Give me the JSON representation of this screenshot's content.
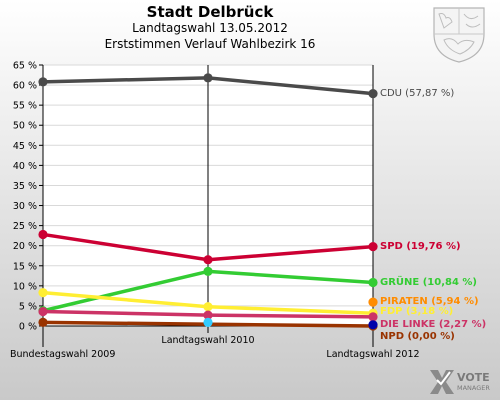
{
  "header": {
    "title": "Stadt Delbrück",
    "subtitle": "Landtagswahl 13.05.2012",
    "subtitle2": "Erststimmen Verlauf Wahlbezirk 16"
  },
  "logo": {
    "line1": "VOTE",
    "line2": "MANAGER"
  },
  "chart_data": {
    "type": "line",
    "title": "Stadt Delbrück",
    "x": [
      "Bundestagswahl 2009",
      "Landtagswahl 2010",
      "Landtagswahl 2012"
    ],
    "ylim": [
      0,
      65
    ],
    "yticks": [
      0,
      5,
      10,
      15,
      20,
      25,
      30,
      35,
      40,
      45,
      50,
      55,
      60,
      65
    ],
    "ytick_labels": [
      "0 %",
      "5 %",
      "10 %",
      "15 %",
      "20 %",
      "25 %",
      "30 %",
      "35 %",
      "40 %",
      "45 %",
      "50 %",
      "55 %",
      "60 %",
      "65 %"
    ],
    "grid": true,
    "series": [
      {
        "name": "CDU",
        "label": "CDU (57,87 %)",
        "color": "#4a4a4a",
        "values": [
          60.8,
          61.8,
          57.87
        ]
      },
      {
        "name": "SPD",
        "label": "SPD (19,76 %)",
        "color": "#cc0033",
        "values": [
          22.8,
          16.5,
          19.76
        ]
      },
      {
        "name": "GRÜNE",
        "label": "GRÜNE (10,84 %)",
        "color": "#33cc33",
        "values": [
          3.8,
          13.6,
          10.84
        ]
      },
      {
        "name": "PIRATEN",
        "label": "PIRATEN (5,94 %)",
        "color": "#ff8c00",
        "values": [
          null,
          null,
          5.94
        ]
      },
      {
        "name": "FDP",
        "label": "FDP (3,18 %)",
        "color": "#ffee33",
        "values": [
          8.3,
          4.8,
          3.18
        ]
      },
      {
        "name": "DIE LINKE",
        "label": "DIE LINKE (2,27 %)",
        "color": "#cc3366",
        "values": [
          3.6,
          2.7,
          2.27
        ]
      },
      {
        "name": "NPD",
        "label": "NPD (0,00 %)",
        "color": "#993300",
        "values": [
          0.9,
          null,
          0.0
        ]
      },
      {
        "name": "",
        "label": "",
        "color": "#0000aa",
        "values": [
          null,
          null,
          0.3
        ]
      },
      {
        "name": "",
        "label": "",
        "color": "#33ccff",
        "values": [
          null,
          0.9,
          null
        ]
      }
    ]
  }
}
